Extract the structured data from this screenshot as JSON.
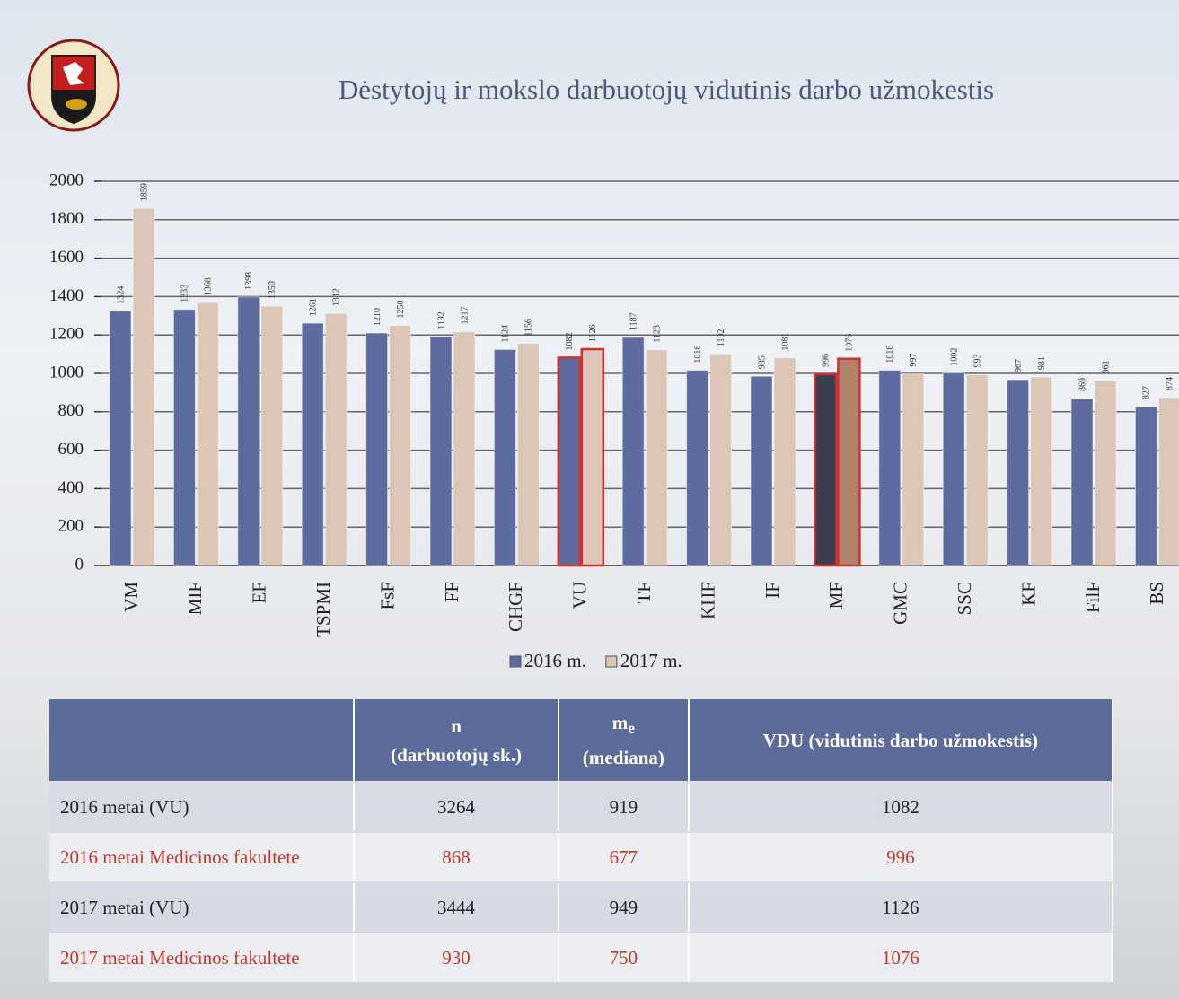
{
  "header": {
    "title": "Dėstytojų ir mokslo darbuotojų vidutinis darbo užmokestis"
  },
  "chart_data": {
    "type": "bar",
    "categories": [
      "VM",
      "MIF",
      "EF",
      "TSPMI",
      "FsF",
      "FF",
      "CHGF",
      "VU",
      "TF",
      "KHF",
      "IF",
      "MF",
      "GMC",
      "SSC",
      "KF",
      "FilF",
      "BS"
    ],
    "series": [
      {
        "name": "2016 m.",
        "color": "#5d6b9f",
        "values": [
          1324,
          1333,
          1398,
          1261,
          1210,
          1192,
          1124,
          1082,
          1187,
          1016,
          985,
          996,
          1016,
          1002,
          967,
          869,
          827
        ],
        "point_colors": [
          "#5d6b9f",
          "#5d6b9f",
          "#5d6b9f",
          "#5d6b9f",
          "#5d6b9f",
          "#5d6b9f",
          "#5d6b9f",
          "#5d6b9f",
          "#5d6b9f",
          "#5d6b9f",
          "#5d6b9f",
          "#3a3f4f",
          "#5d6b9f",
          "#5d6b9f",
          "#5d6b9f",
          "#5d6b9f",
          "#5d6b9f"
        ],
        "edge_colors": [
          "none",
          "none",
          "none",
          "none",
          "none",
          "none",
          "none",
          "#d03030",
          "none",
          "none",
          "none",
          "#d03030",
          "none",
          "none",
          "none",
          "none",
          "none"
        ]
      },
      {
        "name": "2017 m.",
        "color": "#dcc6b8",
        "values": [
          1859,
          1368,
          1350,
          1312,
          1250,
          1217,
          1156,
          1126,
          1123,
          1102,
          1081,
          1076,
          997,
          993,
          981,
          961,
          874
        ],
        "point_colors": [
          "#dcc6b8",
          "#dcc6b8",
          "#dcc6b8",
          "#dcc6b8",
          "#dcc6b8",
          "#dcc6b8",
          "#dcc6b8",
          "#dcc6b8",
          "#dcc6b8",
          "#dcc6b8",
          "#dcc6b8",
          "#b0826a",
          "#dcc6b8",
          "#dcc6b8",
          "#dcc6b8",
          "#dcc6b8",
          "#dcc6b8"
        ],
        "edge_colors": [
          "none",
          "none",
          "none",
          "none",
          "none",
          "none",
          "none",
          "#d03030",
          "none",
          "none",
          "none",
          "#d03030",
          "none",
          "none",
          "none",
          "none",
          "none"
        ]
      }
    ],
    "ylim": [
      0,
      2000
    ],
    "yticks": [
      0,
      200,
      400,
      600,
      800,
      1000,
      1200,
      1400,
      1600,
      1800,
      2000
    ],
    "grid": true,
    "legend": "bottom"
  },
  "table": {
    "header": [
      {
        "symbol": "n",
        "text": "(darbuotojų sk.)"
      },
      {
        "symbol": "m",
        "sub": "e",
        "text": "(mediana)"
      },
      {
        "text": "VDU (vidutinis darbo užmokestis)"
      }
    ],
    "rows": [
      {
        "color": "#222222",
        "cells": [
          "2016 metai (VU)",
          3264,
          919,
          1082
        ]
      },
      {
        "color": "#c0392b",
        "cells": [
          "2016 metai Medicinos fakultete",
          868,
          677,
          996
        ]
      },
      {
        "color": "#222222",
        "cells": [
          "2017 metai (VU)",
          3444,
          949,
          1126
        ]
      },
      {
        "color": "#c0392b",
        "cells": [
          "2017 metai Medicinos fakultete",
          930,
          750,
          1076
        ]
      }
    ]
  }
}
